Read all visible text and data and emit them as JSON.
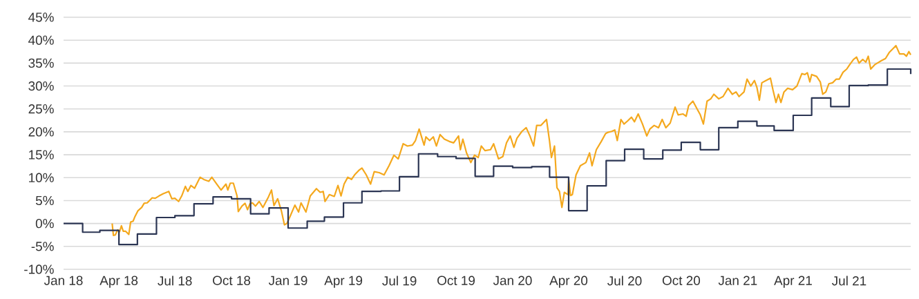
{
  "chart_data": {
    "type": "line",
    "xlim": [
      "2018-01-01",
      "2021-10-09"
    ],
    "xticks": [
      {
        "value": "2018-01-01",
        "label": "Jan 18"
      },
      {
        "value": "2018-04-01",
        "label": "Apr 18"
      },
      {
        "value": "2018-07-01",
        "label": "Jul 18"
      },
      {
        "value": "2018-10-01",
        "label": "Oct 18"
      },
      {
        "value": "2019-01-01",
        "label": "Jan 19"
      },
      {
        "value": "2019-04-01",
        "label": "Apr 19"
      },
      {
        "value": "2019-07-01",
        "label": "Jul 19"
      },
      {
        "value": "2019-10-01",
        "label": "Oct 19"
      },
      {
        "value": "2020-01-01",
        "label": "Jan 20"
      },
      {
        "value": "2020-04-01",
        "label": "Apr 20"
      },
      {
        "value": "2020-07-01",
        "label": "Jul 20"
      },
      {
        "value": "2020-10-01",
        "label": "Oct 20"
      },
      {
        "value": "2021-01-01",
        "label": "Jan 21"
      },
      {
        "value": "2021-04-01",
        "label": "Apr 21"
      },
      {
        "value": "2021-07-01",
        "label": "Jul 21"
      }
    ],
    "ylim": [
      -10,
      45
    ],
    "yticks": [
      {
        "value": -10,
        "label": "-10%"
      },
      {
        "value": -5,
        "label": "-5%"
      },
      {
        "value": 0,
        "label": "0%"
      },
      {
        "value": 5,
        "label": "5%"
      },
      {
        "value": 10,
        "label": "10%"
      },
      {
        "value": 15,
        "label": "15%"
      },
      {
        "value": 20,
        "label": "20%"
      },
      {
        "value": 25,
        "label": "25%"
      },
      {
        "value": 30,
        "label": "30%"
      },
      {
        "value": 35,
        "label": "35%"
      },
      {
        "value": 40,
        "label": "40%"
      },
      {
        "value": 45,
        "label": "45%"
      }
    ],
    "grid": "y",
    "line_style": "solid",
    "series": [
      {
        "color": "#f4a81d",
        "x": [
          "2018-03-21",
          "2018-03-23",
          "2018-03-26",
          "2018-03-30",
          "2018-04-02",
          "2018-04-05",
          "2018-04-08",
          "2018-04-12",
          "2018-04-17",
          "2018-04-20",
          "2018-04-24",
          "2018-04-27",
          "2018-05-02",
          "2018-05-08",
          "2018-05-12",
          "2018-05-17",
          "2018-05-25",
          "2018-05-30",
          "2018-06-05",
          "2018-06-12",
          "2018-06-21",
          "2018-06-26",
          "2018-07-01",
          "2018-07-07",
          "2018-07-12",
          "2018-07-18",
          "2018-07-22",
          "2018-07-27",
          "2018-08-02",
          "2018-08-11",
          "2018-08-17",
          "2018-08-25",
          "2018-08-30",
          "2018-09-07",
          "2018-09-14",
          "2018-09-22",
          "2018-09-25",
          "2018-09-29",
          "2018-10-04",
          "2018-10-10",
          "2018-10-12",
          "2018-10-18",
          "2018-10-23",
          "2018-10-27",
          "2018-10-31",
          "2018-11-04",
          "2018-11-09",
          "2018-11-15",
          "2018-11-21",
          "2018-11-30",
          "2018-12-05",
          "2018-12-09",
          "2018-12-15",
          "2018-12-21",
          "2018-12-26",
          "2018-12-30",
          "2019-01-05",
          "2019-01-12",
          "2019-01-18",
          "2019-01-22",
          "2019-01-30",
          "2019-02-06",
          "2019-02-16",
          "2019-02-22",
          "2019-02-27",
          "2019-03-02",
          "2019-03-09",
          "2019-03-17",
          "2019-03-23",
          "2019-03-28",
          "2019-04-02",
          "2019-04-08",
          "2019-04-14",
          "2019-04-19",
          "2019-04-26",
          "2019-05-01",
          "2019-05-08",
          "2019-05-15",
          "2019-05-21",
          "2019-05-29",
          "2019-06-06",
          "2019-06-14",
          "2019-06-22",
          "2019-06-29",
          "2019-07-07",
          "2019-07-14",
          "2019-07-22",
          "2019-07-27",
          "2019-08-02",
          "2019-08-10",
          "2019-08-13",
          "2019-08-19",
          "2019-08-25",
          "2019-08-30",
          "2019-09-05",
          "2019-09-12",
          "2019-09-20",
          "2019-09-27",
          "2019-10-05",
          "2019-10-08",
          "2019-10-12",
          "2019-10-18",
          "2019-10-25",
          "2019-10-31",
          "2019-11-06",
          "2019-11-11",
          "2019-11-17",
          "2019-11-26",
          "2019-12-01",
          "2019-12-09",
          "2019-12-16",
          "2019-12-22",
          "2019-12-28",
          "2020-01-03",
          "2020-01-08",
          "2020-01-16",
          "2020-01-23",
          "2020-01-29",
          "2020-02-04",
          "2020-02-09",
          "2020-02-16",
          "2020-02-25",
          "2020-03-01",
          "2020-03-04",
          "2020-03-09",
          "2020-03-13",
          "2020-03-17",
          "2020-03-21",
          "2020-03-25",
          "2020-03-31",
          "2020-04-01",
          "2020-04-04",
          "2020-04-07",
          "2020-04-13",
          "2020-04-20",
          "2020-04-29",
          "2020-05-05",
          "2020-05-09",
          "2020-05-16",
          "2020-05-24",
          "2020-05-31",
          "2020-06-04",
          "2020-06-10",
          "2020-06-15",
          "2020-06-19",
          "2020-06-25",
          "2020-06-30",
          "2020-07-06",
          "2020-07-12",
          "2020-07-17",
          "2020-07-23",
          "2020-07-30",
          "2020-08-06",
          "2020-08-11",
          "2020-08-18",
          "2020-08-25",
          "2020-08-31",
          "2020-09-06",
          "2020-09-13",
          "2020-09-21",
          "2020-09-26",
          "2020-10-04",
          "2020-10-09",
          "2020-10-13",
          "2020-10-20",
          "2020-10-26",
          "2020-11-01",
          "2020-11-06",
          "2020-11-12",
          "2020-11-18",
          "2020-11-23",
          "2020-12-01",
          "2020-12-08",
          "2020-12-16",
          "2020-12-23",
          "2020-12-29",
          "2021-01-03",
          "2021-01-11",
          "2021-01-16",
          "2021-01-22",
          "2021-01-28",
          "2021-02-01",
          "2021-02-05",
          "2021-02-09",
          "2021-02-16",
          "2021-02-23",
          "2021-02-27",
          "2021-03-04",
          "2021-03-08",
          "2021-03-12",
          "2021-03-17",
          "2021-03-23",
          "2021-03-31",
          "2021-04-07",
          "2021-04-15",
          "2021-04-20",
          "2021-04-24",
          "2021-04-28",
          "2021-05-01",
          "2021-05-09",
          "2021-05-15",
          "2021-05-19",
          "2021-05-24",
          "2021-05-29",
          "2021-06-04",
          "2021-06-10",
          "2021-06-15",
          "2021-06-21",
          "2021-06-27",
          "2021-07-02",
          "2021-07-08",
          "2021-07-13",
          "2021-07-17",
          "2021-07-23",
          "2021-07-28",
          "2021-08-01",
          "2021-08-05",
          "2021-08-12",
          "2021-08-22",
          "2021-08-29",
          "2021-09-04",
          "2021-09-09",
          "2021-09-15",
          "2021-09-21",
          "2021-09-28",
          "2021-10-02",
          "2021-10-06",
          "2021-10-09"
        ],
        "values": [
          0.0,
          -2.6,
          -2.5,
          -1.4,
          -1.8,
          -0.5,
          -1.7,
          -1.7,
          -2.4,
          0.3,
          0.5,
          1.5,
          2.8,
          3.5,
          4.4,
          4.5,
          5.6,
          5.5,
          6.0,
          6.5,
          7.0,
          5.4,
          5.5,
          4.8,
          6.0,
          8.1,
          7.0,
          8.3,
          7.7,
          10.1,
          9.6,
          9.2,
          10.1,
          8.6,
          7.3,
          8.6,
          7.3,
          8.8,
          8.8,
          6.0,
          2.6,
          3.8,
          4.4,
          3.0,
          4.3,
          4.5,
          3.8,
          4.8,
          3.5,
          5.8,
          7.3,
          3.9,
          5.4,
          2.8,
          -0.3,
          0.0,
          1.8,
          4.0,
          2.5,
          4.5,
          2.5,
          6.0,
          7.6,
          6.8,
          7.0,
          4.8,
          6.3,
          5.9,
          8.3,
          6.0,
          8.6,
          10.1,
          9.6,
          10.6,
          11.6,
          12.1,
          10.6,
          8.6,
          11.3,
          11.1,
          10.6,
          12.6,
          14.9,
          14.1,
          17.4,
          16.9,
          17.1,
          18.1,
          20.6,
          17.1,
          18.9,
          18.1,
          18.9,
          16.9,
          19.4,
          18.4,
          17.9,
          17.6,
          19.1,
          16.1,
          18.4,
          15.4,
          13.3,
          14.9,
          14.4,
          16.9,
          15.9,
          16.1,
          17.4,
          14.1,
          14.6,
          17.6,
          19.1,
          16.6,
          18.6,
          20.1,
          20.9,
          19.1,
          16.9,
          21.4,
          21.4,
          22.7,
          17.9,
          14.4,
          16.9,
          7.8,
          7.0,
          3.5,
          6.8,
          6.3,
          9.7,
          6.1,
          6.3,
          10.6,
          12.6,
          13.3,
          15.4,
          12.6,
          16.1,
          17.9,
          19.6,
          19.9,
          20.1,
          20.4,
          18.1,
          22.7,
          21.7,
          22.4,
          23.2,
          22.2,
          23.9,
          21.7,
          19.1,
          20.6,
          21.4,
          20.9,
          22.7,
          20.9,
          21.9,
          25.4,
          23.7,
          23.9,
          23.4,
          25.7,
          26.7,
          25.2,
          23.7,
          21.7,
          26.7,
          27.2,
          28.2,
          27.2,
          27.7,
          29.5,
          28.2,
          28.7,
          27.7,
          28.7,
          31.5,
          30.0,
          31.2,
          29.7,
          26.9,
          30.7,
          31.2,
          31.7,
          29.2,
          26.4,
          28.2,
          26.4,
          28.7,
          29.5,
          29.2,
          30.0,
          32.7,
          32.5,
          32.9,
          30.9,
          32.5,
          32.1,
          30.9,
          28.2,
          28.7,
          30.5,
          30.7,
          31.5,
          31.5,
          33.0,
          33.7,
          34.7,
          35.8,
          36.3,
          35.0,
          35.8,
          35.2,
          36.5,
          33.7,
          34.7,
          35.5,
          36.0,
          37.3,
          38.0,
          38.8,
          37.0,
          37.0,
          36.5,
          37.5,
          36.8
        ]
      },
      {
        "type": "step",
        "color": "#2b3553",
        "x": [
          "2018-01-01",
          "2018-02-01",
          "2018-03-01",
          "2018-04-01",
          "2018-05-01",
          "2018-06-01",
          "2018-07-01",
          "2018-08-01",
          "2018-09-01",
          "2018-10-01",
          "2018-11-01",
          "2018-12-01",
          "2019-01-01",
          "2019-02-01",
          "2019-03-01",
          "2019-04-01",
          "2019-05-01",
          "2019-06-01",
          "2019-07-01",
          "2019-08-01",
          "2019-09-01",
          "2019-10-01",
          "2019-11-01",
          "2019-12-01",
          "2020-01-01",
          "2020-02-01",
          "2020-03-01",
          "2020-04-01",
          "2020-05-01",
          "2020-06-01",
          "2020-07-01",
          "2020-08-01",
          "2020-09-01",
          "2020-10-01",
          "2020-11-01",
          "2020-12-01",
          "2021-01-01",
          "2021-02-01",
          "2021-03-01",
          "2021-04-01",
          "2021-05-01",
          "2021-06-01",
          "2021-07-01",
          "2021-08-01",
          "2021-09-01",
          "2021-10-09"
        ],
        "values": [
          0.0,
          -1.9,
          -1.5,
          -4.6,
          -2.3,
          1.3,
          1.7,
          4.3,
          5.8,
          5.4,
          2.1,
          3.4,
          -1.0,
          0.5,
          1.4,
          4.5,
          7.0,
          7.1,
          10.2,
          15.2,
          14.6,
          14.2,
          10.3,
          12.5,
          12.2,
          12.4,
          10.1,
          2.8,
          8.2,
          13.7,
          16.2,
          14.1,
          16.0,
          17.7,
          16.1,
          20.9,
          22.3,
          21.3,
          20.3,
          23.6,
          27.4,
          25.5,
          30.1,
          30.2,
          33.7,
          32.6
        ]
      }
    ]
  }
}
